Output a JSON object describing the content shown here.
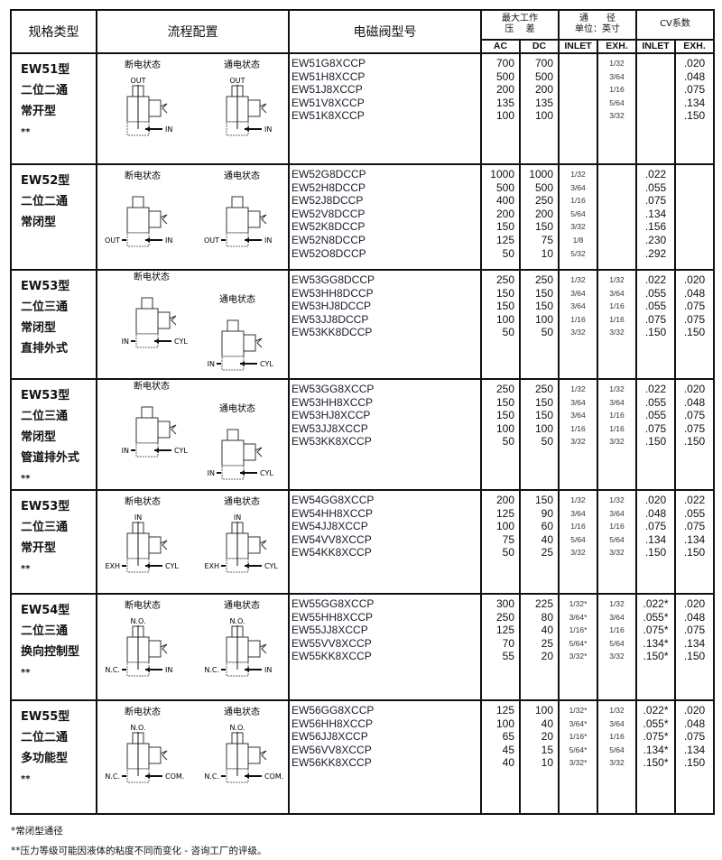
{
  "headers": {
    "type": "规格类型",
    "flow": "流程配置",
    "model": "电磁阀型号",
    "pressure": "最大工作\n压　 差",
    "orifice": "通　　径\n单位：英寸",
    "cv": "CV系数",
    "ac": "AC",
    "dc": "DC",
    "inlet": "INLET",
    "exh": "EXH.",
    "cv_inlet": "INLET",
    "cv_exh": "EXH."
  },
  "rows": [
    {
      "type": [
        "EW51型",
        "二位二通",
        "常开型"
      ],
      "dots": "**",
      "diagram": {
        "layout": "side",
        "off": {
          "label": "断电状态",
          "top": "OUT",
          "left": "",
          "right": "IN"
        },
        "on": {
          "label": "通电状态",
          "top": "OUT",
          "left": "",
          "right": "IN"
        }
      },
      "models": [
        "EW51G8XCCP",
        "EW51H8XCCP",
        "EW51J8XCCP",
        "EW51V8XCCP",
        "EW51K8XCCP"
      ],
      "ac": [
        "700",
        "500",
        "200",
        "135",
        "100"
      ],
      "dc": [
        "700",
        "500",
        "200",
        "135",
        "100"
      ],
      "inlet": [],
      "exh": [
        "1/32",
        "3/64",
        "1/16",
        "5/64",
        "3/32"
      ],
      "cv_inlet": [],
      "cv_exh": [
        ".020",
        ".048",
        ".075",
        ".134",
        ".150"
      ]
    },
    {
      "type": [
        "EW52型",
        "二位二通",
        "常闭型"
      ],
      "dots": "",
      "diagram": {
        "layout": "side",
        "off": {
          "label": "断电状态",
          "top": "",
          "left": "OUT",
          "right": "IN"
        },
        "on": {
          "label": "通电状态",
          "top": "",
          "left": "OUT",
          "right": "IN"
        }
      },
      "models": [
        "EW52G8DCCP",
        "EW52H8DCCP",
        "EW52J8DCCP",
        "EW52V8DCCP",
        "EW52K8DCCP",
        "EW52N8DCCP",
        "EW52O8DCCP"
      ],
      "ac": [
        "1000",
        "500",
        "400",
        "200",
        "150",
        "125",
        "50"
      ],
      "dc": [
        "1000",
        "500",
        "250",
        "200",
        "150",
        "75",
        "10"
      ],
      "inlet": [
        "1/32",
        "3/64",
        "1/16",
        "5/64",
        "3/32",
        "1/8",
        "5/32"
      ],
      "exh": [],
      "cv_inlet": [
        ".022",
        ".055",
        ".075",
        ".134",
        ".156",
        ".230",
        ".292"
      ],
      "cv_exh": []
    },
    {
      "type": [
        "EW53型",
        "二位三通",
        "常闭型",
        "直排外式"
      ],
      "dots": "",
      "diagram": {
        "layout": "stagger",
        "off": {
          "label": "断电状态",
          "top": "",
          "left": "IN",
          "right": "CYL"
        },
        "on": {
          "label": "通电状态",
          "top": "",
          "left": "IN",
          "right": "CYL"
        }
      },
      "models": [
        "EW53GG8DCCP",
        "EW53HH8DCCP",
        "EW53HJ8DCCP",
        "EW53JJ8DCCP",
        "EW53KK8DCCP"
      ],
      "ac": [
        "250",
        "150",
        "150",
        "100",
        "50"
      ],
      "dc": [
        "250",
        "150",
        "150",
        "100",
        "50"
      ],
      "inlet": [
        "1/32",
        "3/64",
        "3/64",
        "1/16",
        "3/32"
      ],
      "exh": [
        "1/32",
        "3/64",
        "1/16",
        "1/16",
        "3/32"
      ],
      "cv_inlet": [
        ".022",
        ".055",
        ".055",
        ".075",
        ".150"
      ],
      "cv_exh": [
        ".020",
        ".048",
        ".075",
        ".075",
        ".150"
      ]
    },
    {
      "type": [
        "EW53型",
        "二位三通",
        "常闭型",
        "管道排外式"
      ],
      "dots": "**",
      "diagram": {
        "layout": "stagger",
        "off": {
          "label": "断电状态",
          "top": "",
          "left": "IN",
          "right": "CYL"
        },
        "on": {
          "label": "通电状态",
          "top": "",
          "left": "IN",
          "right": "CYL"
        }
      },
      "models": [
        "EW53GG8XCCP",
        "EW53HH8XCCP",
        "EW53HJ8XCCP",
        "EW53JJ8XCCP",
        "EW53KK8XCCP"
      ],
      "ac": [
        "250",
        "150",
        "150",
        "100",
        "50"
      ],
      "dc": [
        "250",
        "150",
        "150",
        "100",
        "50"
      ],
      "inlet": [
        "1/32",
        "3/64",
        "3/64",
        "1/16",
        "3/32"
      ],
      "exh": [
        "1/32",
        "3/64",
        "1/16",
        "1/16",
        "3/32"
      ],
      "cv_inlet": [
        ".022",
        ".055",
        ".055",
        ".075",
        ".150"
      ],
      "cv_exh": [
        ".020",
        ".048",
        ".075",
        ".075",
        ".150"
      ]
    },
    {
      "type": [
        "EW53型",
        "二位三通",
        "常开型"
      ],
      "dots": "**",
      "diagram": {
        "layout": "side",
        "off": {
          "label": "断电状态",
          "top": "IN",
          "left": "EXH",
          "right": "CYL"
        },
        "on": {
          "label": "通电状态",
          "top": "IN",
          "left": "EXH",
          "right": "CYL"
        }
      },
      "models": [
        "EW54GG8XCCP",
        "EW54HH8XCCP",
        "EW54JJ8XCCP",
        "EW54VV8XCCP",
        "EW54KK8XCCP"
      ],
      "ac": [
        "200",
        "125",
        "100",
        "75",
        "50"
      ],
      "dc": [
        "150",
        "90",
        "60",
        "40",
        "25"
      ],
      "inlet": [
        "1/32",
        "3/64",
        "1/16",
        "5/64",
        "3/32"
      ],
      "exh": [
        "1/32",
        "3/64",
        "1/16",
        "5/64",
        "3/32"
      ],
      "cv_inlet": [
        ".020",
        ".048",
        ".075",
        ".134",
        ".150"
      ],
      "cv_exh": [
        ".022",
        ".055",
        ".075",
        ".134",
        ".150"
      ]
    },
    {
      "type": [
        "EW54型",
        "二位三通",
        "换向控制型"
      ],
      "dots": "**",
      "diagram": {
        "layout": "side",
        "off": {
          "label": "断电状态",
          "top": "N.O.",
          "left": "N.C.",
          "right": "IN"
        },
        "on": {
          "label": "通电状态",
          "top": "N.O.",
          "left": "N.C.",
          "right": "IN"
        }
      },
      "models": [
        "EW55GG8XCCP",
        "EW55HH8XCCP",
        "EW55JJ8XCCP",
        "EW55VV8XCCP",
        "EW55KK8XCCP"
      ],
      "ac": [
        "300",
        "250",
        "125",
        "70",
        "55"
      ],
      "dc": [
        "225",
        "80",
        "40",
        "25",
        "20"
      ],
      "inlet": [
        "1/32*",
        "3/64*",
        "1/16*",
        "5/64*",
        "3/32*"
      ],
      "exh": [
        "1/32",
        "3/64",
        "1/16",
        "5/64",
        "3/32"
      ],
      "cv_inlet": [
        ".022*",
        ".055*",
        ".075*",
        ".134*",
        ".150*"
      ],
      "cv_exh": [
        ".020",
        ".048",
        ".075",
        ".134",
        ".150"
      ]
    },
    {
      "type": [
        "EW55型",
        "二位二通",
        "多功能型"
      ],
      "dots": "**",
      "diagram": {
        "layout": "side",
        "off": {
          "label": "断电状态",
          "top": "N.O.",
          "left": "N.C.",
          "right": "COM."
        },
        "on": {
          "label": "通电状态",
          "top": "N.O.",
          "left": "N.C.",
          "right": "COM."
        }
      },
      "models": [
        "EW56GG8XCCP",
        "EW56HH8XCCP",
        "EW56JJ8XCCP",
        "EW56VV8XCCP",
        "EW56KK8XCCP"
      ],
      "ac": [
        "125",
        "100",
        "65",
        "45",
        "40"
      ],
      "dc": [
        "100",
        "40",
        "20",
        "15",
        "10"
      ],
      "inlet": [
        "1/32*",
        "3/64*",
        "1/16*",
        "5/64*",
        "3/32*"
      ],
      "exh": [
        "1/32",
        "3/64",
        "1/16",
        "5/64",
        "3/32"
      ],
      "cv_inlet": [
        ".022*",
        ".055*",
        ".075*",
        ".134*",
        ".150*"
      ],
      "cv_exh": [
        ".020",
        ".048",
        ".075",
        ".134",
        ".150"
      ]
    }
  ],
  "footnotes": [
    "*常闭型通径",
    "**压力等级可能因液体的粘度不同而变化 - 咨询工厂的评级。"
  ]
}
